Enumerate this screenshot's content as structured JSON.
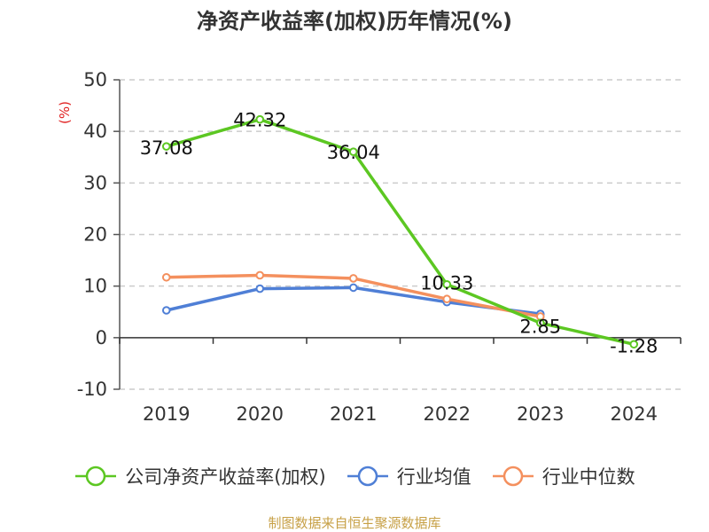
{
  "chart_data": {
    "type": "line",
    "title": "净资产收益率(加权)历年情况(%)",
    "ylabel": "(%)",
    "categories": [
      "2019",
      "2020",
      "2021",
      "2022",
      "2023",
      "2024"
    ],
    "ylim": [
      -10,
      50
    ],
    "yticks": [
      -10,
      0,
      10,
      20,
      30,
      40,
      50
    ],
    "grid": "horizontal dashed",
    "series": [
      {
        "name": "公司净资产收益率(加权)",
        "color": "#5cc722",
        "values": [
          37.08,
          42.32,
          36.04,
          10.33,
          2.85,
          -1.28
        ],
        "labels": [
          "37.08",
          "42.32",
          "36.04",
          "10.33",
          "2.85",
          "-1.28"
        ]
      },
      {
        "name": "行业均值",
        "color": "#4f7fd6",
        "values": [
          5.3,
          9.5,
          9.7,
          6.9,
          4.6,
          null
        ]
      },
      {
        "name": "行业中位数",
        "color": "#f4905e",
        "values": [
          11.7,
          12.1,
          11.5,
          7.5,
          4.1,
          null
        ]
      }
    ],
    "legend_position": "bottom"
  },
  "footer": {
    "source": "制图数据来自恒生聚源数据库"
  }
}
